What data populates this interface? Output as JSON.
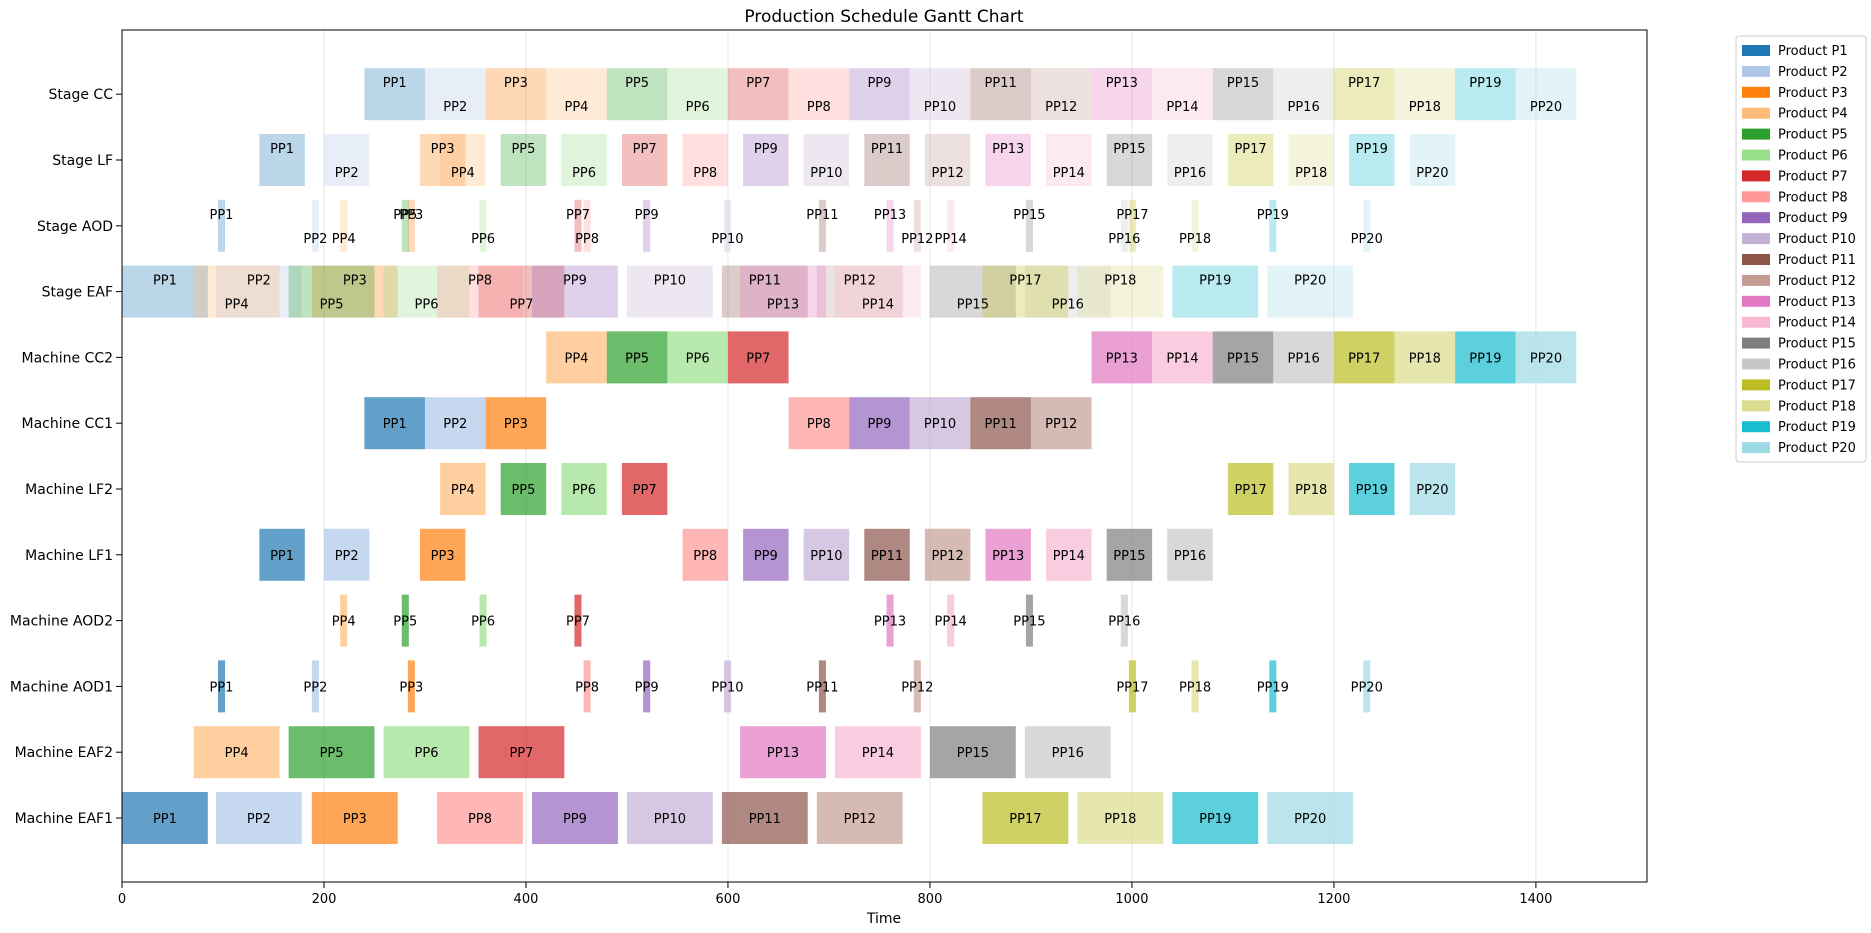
{
  "chart_data": {
    "type": "gantt",
    "title": "Production Schedule Gantt Chart",
    "xlabel": "Time",
    "ylabel": "",
    "xlim": [
      0,
      1510
    ],
    "xticks": [
      0,
      200,
      400,
      600,
      800,
      1000,
      1200,
      1400
    ],
    "grid": "vertical",
    "legend_position": "upper-right-outside",
    "rows": [
      "Machine EAF1",
      "Machine EAF2",
      "Machine AOD1",
      "Machine AOD2",
      "Machine LF1",
      "Machine LF2",
      "Machine CC1",
      "Machine CC2",
      "Stage EAF",
      "Stage AOD",
      "Stage LF",
      "Stage CC"
    ],
    "products": [
      {
        "id": "P1",
        "label": "Product P1",
        "color": "#1f77b4"
      },
      {
        "id": "P2",
        "label": "Product P2",
        "color": "#aec7e8"
      },
      {
        "id": "P3",
        "label": "Product P3",
        "color": "#ff7f0e"
      },
      {
        "id": "P4",
        "label": "Product P4",
        "color": "#ffbb78"
      },
      {
        "id": "P5",
        "label": "Product P5",
        "color": "#2ca02c"
      },
      {
        "id": "P6",
        "label": "Product P6",
        "color": "#98df8a"
      },
      {
        "id": "P7",
        "label": "Product P7",
        "color": "#d62728"
      },
      {
        "id": "P8",
        "label": "Product P8",
        "color": "#ff9896"
      },
      {
        "id": "P9",
        "label": "Product P9",
        "color": "#9467bd"
      },
      {
        "id": "P10",
        "label": "Product P10",
        "color": "#c5b0d5"
      },
      {
        "id": "P11",
        "label": "Product P11",
        "color": "#8c564b"
      },
      {
        "id": "P12",
        "label": "Product P12",
        "color": "#c49c94"
      },
      {
        "id": "P13",
        "label": "Product P13",
        "color": "#e377c2"
      },
      {
        "id": "P14",
        "label": "Product P14",
        "color": "#f7b6d2"
      },
      {
        "id": "P15",
        "label": "Product P15",
        "color": "#7f7f7f"
      },
      {
        "id": "P16",
        "label": "Product P16",
        "color": "#c7c7c7"
      },
      {
        "id": "P17",
        "label": "Product P17",
        "color": "#bcbd22"
      },
      {
        "id": "P18",
        "label": "Product P18",
        "color": "#dbdb8d"
      },
      {
        "id": "P19",
        "label": "Product P19",
        "color": "#17becf"
      },
      {
        "id": "P20",
        "label": "Product P20",
        "color": "#9edae5"
      }
    ],
    "tasks": [
      {
        "row": 0,
        "p": 0,
        "start": 0,
        "end": 85,
        "label": "PP1"
      },
      {
        "row": 0,
        "p": 1,
        "start": 93,
        "end": 178,
        "label": "PP2"
      },
      {
        "row": 0,
        "p": 2,
        "start": 188,
        "end": 273,
        "label": "PP3"
      },
      {
        "row": 0,
        "p": 7,
        "start": 312,
        "end": 397,
        "label": "PP8"
      },
      {
        "row": 0,
        "p": 8,
        "start": 406,
        "end": 491,
        "label": "PP9"
      },
      {
        "row": 0,
        "p": 9,
        "start": 500,
        "end": 585,
        "label": "PP10"
      },
      {
        "row": 0,
        "p": 10,
        "start": 594,
        "end": 679,
        "label": "PP11"
      },
      {
        "row": 0,
        "p": 11,
        "start": 688,
        "end": 773,
        "label": "PP12"
      },
      {
        "row": 0,
        "p": 16,
        "start": 852,
        "end": 937,
        "label": "PP17"
      },
      {
        "row": 0,
        "p": 17,
        "start": 946,
        "end": 1031,
        "label": "PP18"
      },
      {
        "row": 0,
        "p": 18,
        "start": 1040,
        "end": 1125,
        "label": "PP19"
      },
      {
        "row": 0,
        "p": 19,
        "start": 1134,
        "end": 1219,
        "label": "PP20"
      },
      {
        "row": 1,
        "p": 3,
        "start": 71,
        "end": 156,
        "label": "PP4"
      },
      {
        "row": 1,
        "p": 4,
        "start": 165,
        "end": 250,
        "label": "PP5"
      },
      {
        "row": 1,
        "p": 5,
        "start": 259,
        "end": 344,
        "label": "PP6"
      },
      {
        "row": 1,
        "p": 6,
        "start": 353,
        "end": 438,
        "label": "PP7"
      },
      {
        "row": 1,
        "p": 12,
        "start": 612,
        "end": 697,
        "label": "PP13"
      },
      {
        "row": 1,
        "p": 13,
        "start": 706,
        "end": 791,
        "label": "PP14"
      },
      {
        "row": 1,
        "p": 14,
        "start": 800,
        "end": 885,
        "label": "PP15"
      },
      {
        "row": 1,
        "p": 15,
        "start": 894,
        "end": 979,
        "label": "PP16"
      },
      {
        "row": 2,
        "p": 0,
        "start": 95,
        "end": 102,
        "label": "PP1"
      },
      {
        "row": 2,
        "p": 1,
        "start": 188,
        "end": 195,
        "label": "PP2"
      },
      {
        "row": 2,
        "p": 2,
        "start": 283,
        "end": 290,
        "label": "PP3"
      },
      {
        "row": 2,
        "p": 7,
        "start": 457,
        "end": 464,
        "label": "PP8"
      },
      {
        "row": 2,
        "p": 8,
        "start": 516,
        "end": 523,
        "label": "PP9"
      },
      {
        "row": 2,
        "p": 9,
        "start": 596,
        "end": 603,
        "label": "PP10"
      },
      {
        "row": 2,
        "p": 10,
        "start": 690,
        "end": 697,
        "label": "PP11"
      },
      {
        "row": 2,
        "p": 11,
        "start": 784,
        "end": 791,
        "label": "PP12"
      },
      {
        "row": 2,
        "p": 16,
        "start": 997,
        "end": 1004,
        "label": "PP17"
      },
      {
        "row": 2,
        "p": 17,
        "start": 1059,
        "end": 1066,
        "label": "PP18"
      },
      {
        "row": 2,
        "p": 18,
        "start": 1136,
        "end": 1143,
        "label": "PP19"
      },
      {
        "row": 2,
        "p": 19,
        "start": 1229,
        "end": 1236,
        "label": "PP20"
      },
      {
        "row": 3,
        "p": 3,
        "start": 216,
        "end": 223,
        "label": "PP4"
      },
      {
        "row": 3,
        "p": 4,
        "start": 277,
        "end": 284,
        "label": "PP5"
      },
      {
        "row": 3,
        "p": 5,
        "start": 354,
        "end": 361,
        "label": "PP6"
      },
      {
        "row": 3,
        "p": 6,
        "start": 448,
        "end": 455,
        "label": "PP7"
      },
      {
        "row": 3,
        "p": 12,
        "start": 757,
        "end": 764,
        "label": "PP13"
      },
      {
        "row": 3,
        "p": 13,
        "start": 817,
        "end": 824,
        "label": "PP14"
      },
      {
        "row": 3,
        "p": 14,
        "start": 895,
        "end": 902,
        "label": "PP15"
      },
      {
        "row": 3,
        "p": 15,
        "start": 989,
        "end": 996,
        "label": "PP16"
      },
      {
        "row": 4,
        "p": 0,
        "start": 136,
        "end": 181,
        "label": "PP1"
      },
      {
        "row": 4,
        "p": 1,
        "start": 200,
        "end": 245,
        "label": "PP2"
      },
      {
        "row": 4,
        "p": 2,
        "start": 295,
        "end": 340,
        "label": "PP3"
      },
      {
        "row": 4,
        "p": 7,
        "start": 555,
        "end": 600,
        "label": "PP8"
      },
      {
        "row": 4,
        "p": 8,
        "start": 615,
        "end": 660,
        "label": "PP9"
      },
      {
        "row": 4,
        "p": 9,
        "start": 675,
        "end": 720,
        "label": "PP10"
      },
      {
        "row": 4,
        "p": 10,
        "start": 735,
        "end": 780,
        "label": "PP11"
      },
      {
        "row": 4,
        "p": 11,
        "start": 795,
        "end": 840,
        "label": "PP12"
      },
      {
        "row": 4,
        "p": 12,
        "start": 855,
        "end": 900,
        "label": "PP13"
      },
      {
        "row": 4,
        "p": 13,
        "start": 915,
        "end": 960,
        "label": "PP14"
      },
      {
        "row": 4,
        "p": 14,
        "start": 975,
        "end": 1020,
        "label": "PP15"
      },
      {
        "row": 4,
        "p": 15,
        "start": 1035,
        "end": 1080,
        "label": "PP16"
      },
      {
        "row": 5,
        "p": 3,
        "start": 315,
        "end": 360,
        "label": "PP4"
      },
      {
        "row": 5,
        "p": 4,
        "start": 375,
        "end": 420,
        "label": "PP5"
      },
      {
        "row": 5,
        "p": 5,
        "start": 435,
        "end": 480,
        "label": "PP6"
      },
      {
        "row": 5,
        "p": 6,
        "start": 495,
        "end": 540,
        "label": "PP7"
      },
      {
        "row": 5,
        "p": 16,
        "start": 1095,
        "end": 1140,
        "label": "PP17"
      },
      {
        "row": 5,
        "p": 17,
        "start": 1155,
        "end": 1200,
        "label": "PP18"
      },
      {
        "row": 5,
        "p": 18,
        "start": 1215,
        "end": 1260,
        "label": "PP19"
      },
      {
        "row": 5,
        "p": 19,
        "start": 1275,
        "end": 1320,
        "label": "PP20"
      },
      {
        "row": 6,
        "p": 0,
        "start": 240,
        "end": 300,
        "label": "PP1"
      },
      {
        "row": 6,
        "p": 1,
        "start": 300,
        "end": 360,
        "label": "PP2"
      },
      {
        "row": 6,
        "p": 2,
        "start": 360,
        "end": 420,
        "label": "PP3"
      },
      {
        "row": 6,
        "p": 7,
        "start": 660,
        "end": 720,
        "label": "PP8"
      },
      {
        "row": 6,
        "p": 8,
        "start": 720,
        "end": 780,
        "label": "PP9"
      },
      {
        "row": 6,
        "p": 9,
        "start": 780,
        "end": 840,
        "label": "PP10"
      },
      {
        "row": 6,
        "p": 10,
        "start": 840,
        "end": 900,
        "label": "PP11"
      },
      {
        "row": 6,
        "p": 11,
        "start": 900,
        "end": 960,
        "label": "PP12"
      },
      {
        "row": 7,
        "p": 3,
        "start": 420,
        "end": 480,
        "label": "PP4"
      },
      {
        "row": 7,
        "p": 4,
        "start": 480,
        "end": 540,
        "label": "PP5"
      },
      {
        "row": 7,
        "p": 5,
        "start": 540,
        "end": 600,
        "label": "PP6"
      },
      {
        "row": 7,
        "p": 6,
        "start": 600,
        "end": 660,
        "label": "PP7"
      },
      {
        "row": 7,
        "p": 12,
        "start": 960,
        "end": 1020,
        "label": "PP13"
      },
      {
        "row": 7,
        "p": 13,
        "start": 1020,
        "end": 1080,
        "label": "PP14"
      },
      {
        "row": 7,
        "p": 14,
        "start": 1080,
        "end": 1140,
        "label": "PP15"
      },
      {
        "row": 7,
        "p": 15,
        "start": 1140,
        "end": 1200,
        "label": "PP16"
      },
      {
        "row": 7,
        "p": 16,
        "start": 1200,
        "end": 1260,
        "label": "PP17"
      },
      {
        "row": 7,
        "p": 17,
        "start": 1260,
        "end": 1320,
        "label": "PP18"
      },
      {
        "row": 7,
        "p": 18,
        "start": 1320,
        "end": 1380,
        "label": "PP19"
      },
      {
        "row": 7,
        "p": 19,
        "start": 1380,
        "end": 1440,
        "label": "PP20"
      }
    ]
  }
}
